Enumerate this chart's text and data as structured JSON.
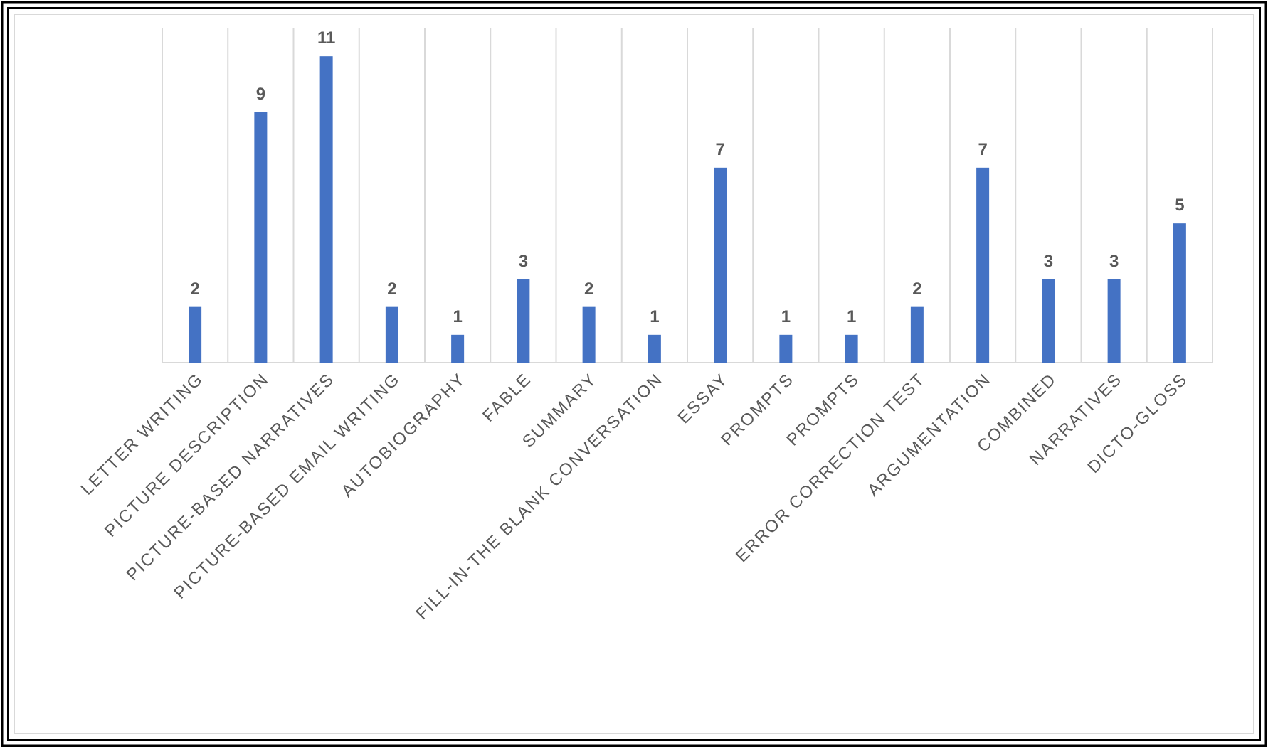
{
  "chart_data": {
    "type": "bar",
    "categories": [
      "LETTER WRITING",
      "PICTURE DESCRIPTION",
      "PICTURE-BASED NARRATIVES",
      "PICTURE-BASED EMAIL WRITING",
      "AUTOBIOGRAPHY",
      "FABLE",
      "SUMMARY",
      "FILL-IN-THE BLANK CONVERSATION",
      "ESSAY",
      "PROMPTS",
      "PROMPTS",
      "ERROR CORRECTION TEST",
      "ARGUMENTATION",
      "COMBINED",
      "NARRATIVES",
      "DICTO-GLOSS"
    ],
    "values": [
      2,
      9,
      11,
      2,
      1,
      3,
      2,
      1,
      7,
      1,
      1,
      2,
      7,
      3,
      3,
      5
    ],
    "color": "#4472c4",
    "ylim": [
      0,
      12
    ],
    "data_labels": true,
    "grid": "x"
  }
}
